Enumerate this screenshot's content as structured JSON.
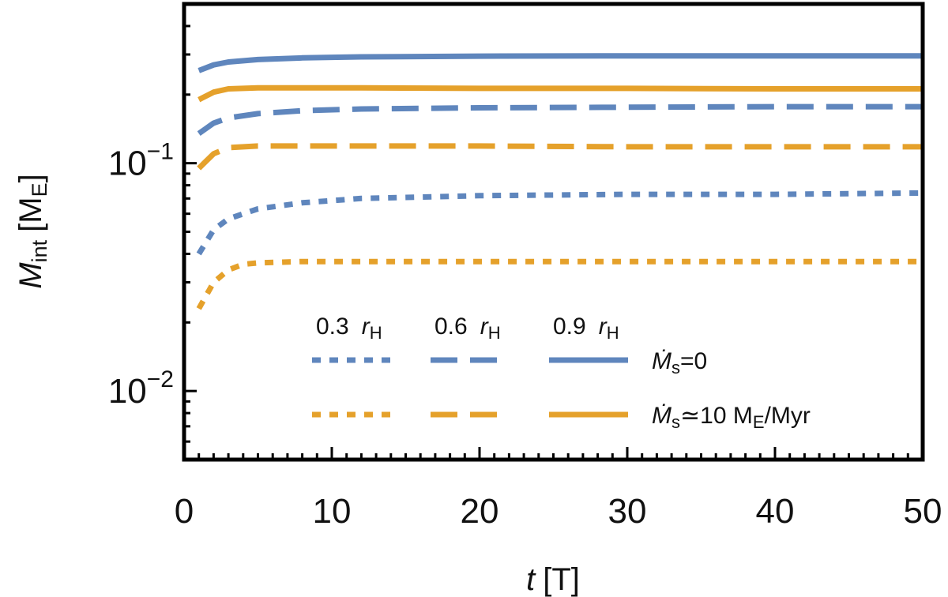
{
  "chart_data": {
    "type": "line",
    "title": "",
    "xlabel": {
      "var": "t",
      "unit": "[T]"
    },
    "ylabel": {
      "var": "M",
      "sub": "int",
      "unit_open": "[M",
      "unit_sub": "E",
      "unit_close": "]"
    },
    "xlim": [
      0,
      50
    ],
    "ylim": [
      0.005,
      0.5
    ],
    "yscale": "log",
    "xticks": [
      0,
      10,
      20,
      30,
      40,
      50
    ],
    "xtick_labels": [
      "0",
      "10",
      "20",
      "30",
      "40",
      "50"
    ],
    "yticks_major": [
      {
        "value": 0.1,
        "base": "10",
        "exp": "−1"
      },
      {
        "value": 0.01,
        "base": "10",
        "exp": "−2"
      }
    ],
    "colors": {
      "blue": "#5f86bd",
      "orange": "#e5a12b",
      "frame": "#000000"
    },
    "legend": {
      "position": "bottom-right",
      "columns": [
        {
          "value": "0.3",
          "unit": "r",
          "unit_sub": "H",
          "style": "dotted"
        },
        {
          "value": "0.6",
          "unit": "r",
          "unit_sub": "H",
          "style": "dashed"
        },
        {
          "value": "0.9",
          "unit": "r",
          "unit_sub": "H",
          "style": "solid"
        }
      ],
      "rows": [
        {
          "color": "blue",
          "label_var": "Ṁ",
          "label_sub": "s",
          "label_rest": "=0"
        },
        {
          "color": "orange",
          "label_var": "Ṁ",
          "label_sub": "s",
          "label_rest": "≃10 M",
          "label_rest_sub": "E",
          "label_tail": "/Myr"
        }
      ]
    },
    "series": [
      {
        "name": "0.9 rH, Ms=0",
        "color": "blue",
        "style": "solid",
        "x": [
          1,
          2,
          3,
          5,
          8,
          12,
          20,
          30,
          40,
          50
        ],
        "y": [
          0.255,
          0.27,
          0.278,
          0.285,
          0.29,
          0.293,
          0.295,
          0.296,
          0.296,
          0.296
        ]
      },
      {
        "name": "0.9 rH, Ms=10 ME/Myr",
        "color": "orange",
        "style": "solid",
        "x": [
          1,
          2,
          3,
          5,
          8,
          12,
          20,
          30,
          40,
          50
        ],
        "y": [
          0.19,
          0.205,
          0.212,
          0.214,
          0.214,
          0.214,
          0.213,
          0.213,
          0.212,
          0.212
        ]
      },
      {
        "name": "0.6 rH, Ms=0",
        "color": "blue",
        "style": "dashed",
        "x": [
          1,
          2,
          3,
          5,
          8,
          12,
          20,
          30,
          40,
          50
        ],
        "y": [
          0.135,
          0.15,
          0.158,
          0.165,
          0.17,
          0.173,
          0.175,
          0.176,
          0.177,
          0.177
        ]
      },
      {
        "name": "0.6 rH, Ms=10 ME/Myr",
        "color": "orange",
        "style": "dashed",
        "x": [
          1,
          2,
          3,
          5,
          8,
          12,
          20,
          30,
          40,
          50
        ],
        "y": [
          0.095,
          0.11,
          0.117,
          0.119,
          0.119,
          0.119,
          0.119,
          0.118,
          0.118,
          0.118
        ]
      },
      {
        "name": "0.3 rH, Ms=0",
        "color": "blue",
        "style": "dotted",
        "x": [
          1,
          2,
          3,
          5,
          8,
          12,
          20,
          30,
          40,
          50
        ],
        "y": [
          0.04,
          0.051,
          0.057,
          0.063,
          0.067,
          0.07,
          0.072,
          0.073,
          0.073,
          0.074
        ]
      },
      {
        "name": "0.3 rH, Ms=10 ME/Myr",
        "color": "orange",
        "style": "dotted",
        "x": [
          1,
          2,
          3,
          4,
          5,
          8,
          12,
          20,
          30,
          40,
          50
        ],
        "y": [
          0.023,
          0.03,
          0.034,
          0.036,
          0.0365,
          0.037,
          0.037,
          0.037,
          0.037,
          0.037,
          0.037
        ]
      }
    ]
  }
}
